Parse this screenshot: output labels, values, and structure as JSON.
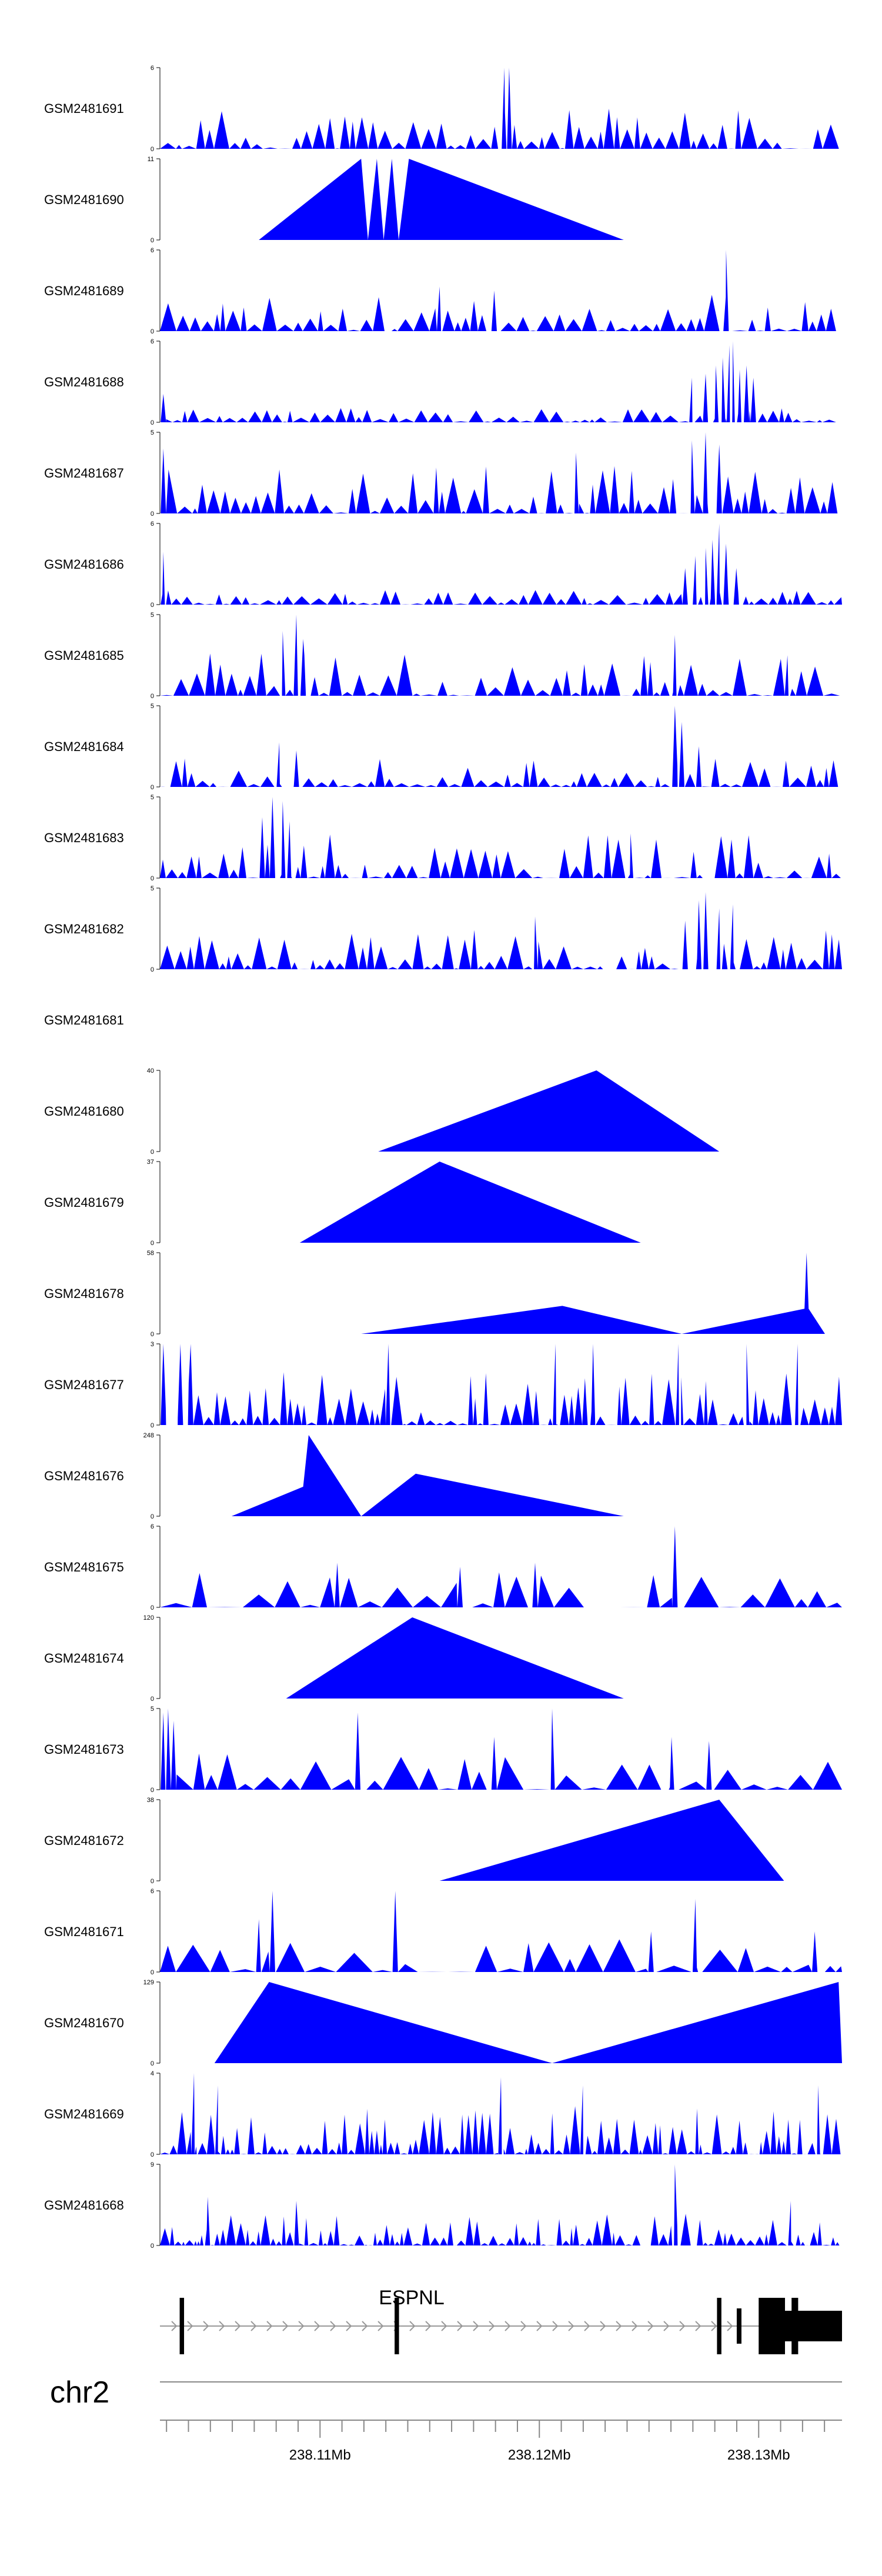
{
  "chart_data": {
    "type": "area",
    "chromosome": "chr2",
    "gene": "ESPNL",
    "x_range_mb": [
      238.1027,
      238.1338
    ],
    "fill_color": "#0000ff",
    "axis_ticks": [
      "238.11Mb",
      "238.12Mb",
      "238.13Mb"
    ],
    "axis_tick_values": [
      238.11,
      238.12,
      238.13
    ],
    "tracks": [
      {
        "name": "GSM2481691",
        "ymax": 6,
        "max_label": "6",
        "min_label": "0",
        "pattern": "noisy",
        "seed": 11,
        "peak": 0.5,
        "spikes": [
          [
            0.505,
            1.0
          ],
          [
            0.512,
            1.0
          ]
        ],
        "segs": null
      },
      {
        "name": "GSM2481690",
        "ymax": 11,
        "max_label": "11",
        "min_label": "0",
        "pattern": "tri",
        "seed": 0,
        "peak": 0,
        "spikes": [],
        "segs": [
          [
            0.145,
            0
          ],
          [
            0.295,
            11
          ],
          [
            0.305,
            0
          ],
          [
            0.318,
            11
          ],
          [
            0.328,
            0
          ],
          [
            0.34,
            11
          ],
          [
            0.35,
            0
          ],
          [
            0.365,
            11
          ],
          [
            0.68,
            0
          ]
        ]
      },
      {
        "name": "GSM2481689",
        "ymax": 6,
        "max_label": "6",
        "min_label": "0",
        "pattern": "noisy",
        "seed": 23,
        "peak": 0.45,
        "spikes": [
          [
            0.83,
            1.0
          ],
          [
            0.41,
            0.55
          ],
          [
            0.49,
            0.5
          ]
        ],
        "segs": null
      },
      {
        "name": "GSM2481688",
        "ymax": 6,
        "max_label": "6",
        "min_label": "0",
        "pattern": "cluster",
        "seed": 31,
        "peak": 0.22,
        "spikes": [
          [
            0.78,
            0.55
          ],
          [
            0.8,
            0.6
          ],
          [
            0.815,
            0.7
          ],
          [
            0.825,
            0.8
          ],
          [
            0.835,
            0.95
          ],
          [
            0.84,
            1.0
          ],
          [
            0.85,
            0.65
          ],
          [
            0.86,
            0.7
          ],
          [
            0.87,
            0.55
          ],
          [
            0.005,
            0.35
          ]
        ],
        "segs": null
      },
      {
        "name": "GSM2481687",
        "ymax": 5,
        "max_label": "5",
        "min_label": "0",
        "pattern": "noisy",
        "seed": 47,
        "peak": 0.6,
        "spikes": [
          [
            0.78,
            0.9
          ],
          [
            0.8,
            1.0
          ],
          [
            0.82,
            0.85
          ],
          [
            0.61,
            0.75
          ],
          [
            0.005,
            0.8
          ]
        ],
        "segs": null
      },
      {
        "name": "GSM2481686",
        "ymax": 6,
        "max_label": "6",
        "min_label": "0",
        "pattern": "cluster",
        "seed": 53,
        "peak": 0.25,
        "spikes": [
          [
            0.77,
            0.45
          ],
          [
            0.785,
            0.6
          ],
          [
            0.8,
            0.7
          ],
          [
            0.81,
            0.8
          ],
          [
            0.82,
            1.0
          ],
          [
            0.83,
            0.75
          ],
          [
            0.845,
            0.45
          ],
          [
            0.005,
            0.65
          ]
        ],
        "segs": null
      },
      {
        "name": "GSM2481685",
        "ymax": 5,
        "max_label": "5",
        "min_label": "0",
        "pattern": "noisy",
        "seed": 61,
        "peak": 0.55,
        "spikes": [
          [
            0.2,
            1.0
          ],
          [
            0.18,
            0.8
          ],
          [
            0.21,
            0.7
          ],
          [
            0.755,
            0.75
          ],
          [
            0.92,
            0.5
          ]
        ],
        "segs": null
      },
      {
        "name": "GSM2481684",
        "ymax": 5,
        "max_label": "5",
        "min_label": "0",
        "pattern": "noisy",
        "seed": 71,
        "peak": 0.35,
        "spikes": [
          [
            0.755,
            1.0
          ],
          [
            0.765,
            0.8
          ],
          [
            0.79,
            0.5
          ],
          [
            0.175,
            0.55
          ],
          [
            0.2,
            0.45
          ]
        ],
        "segs": null
      },
      {
        "name": "GSM2481683",
        "ymax": 5,
        "max_label": "5",
        "min_label": "0",
        "pattern": "noisy",
        "seed": 83,
        "peak": 0.55,
        "spikes": [
          [
            0.165,
            1.0
          ],
          [
            0.18,
            0.95
          ],
          [
            0.15,
            0.75
          ],
          [
            0.19,
            0.7
          ],
          [
            0.69,
            0.55
          ]
        ],
        "segs": null
      },
      {
        "name": "GSM2481682",
        "ymax": 5,
        "max_label": "5",
        "min_label": "0",
        "pattern": "noisy",
        "seed": 97,
        "peak": 0.5,
        "spikes": [
          [
            0.8,
            0.95
          ],
          [
            0.79,
            0.85
          ],
          [
            0.82,
            0.75
          ],
          [
            0.84,
            0.8
          ],
          [
            0.77,
            0.6
          ],
          [
            0.55,
            0.65
          ]
        ],
        "segs": null
      },
      {
        "name": "GSM2481681",
        "ymax": 0,
        "max_label": "",
        "min_label": "",
        "pattern": "empty",
        "seed": 0,
        "peak": 0,
        "spikes": [],
        "segs": null
      },
      {
        "name": "GSM2481680",
        "ymax": 40,
        "max_label": "40",
        "min_label": "0",
        "pattern": "tri",
        "seed": 0,
        "peak": 0,
        "spikes": [],
        "segs": [
          [
            0.32,
            0
          ],
          [
            0.64,
            40
          ],
          [
            0.82,
            0
          ]
        ]
      },
      {
        "name": "GSM2481679",
        "ymax": 37,
        "max_label": "37",
        "min_label": "0",
        "pattern": "tri",
        "seed": 0,
        "peak": 0,
        "spikes": [],
        "segs": [
          [
            0.205,
            0
          ],
          [
            0.41,
            37
          ],
          [
            0.705,
            0
          ]
        ]
      },
      {
        "name": "GSM2481678",
        "ymax": 58,
        "max_label": "58",
        "min_label": "0",
        "pattern": "tri",
        "seed": 0,
        "peak": 0,
        "spikes": [],
        "segs": [
          [
            0.295,
            0
          ],
          [
            0.59,
            20
          ],
          [
            0.765,
            0
          ],
          [
            0.945,
            18
          ],
          [
            0.948,
            58
          ],
          [
            0.951,
            18
          ],
          [
            0.975,
            0
          ]
        ]
      },
      {
        "name": "GSM2481677",
        "ymax": 3,
        "max_label": "3",
        "min_label": "0",
        "pattern": "spiky",
        "seed": 103,
        "peak": 0.65,
        "spikes": [
          [
            0.005,
            1.0
          ],
          [
            0.03,
            1.0
          ],
          [
            0.045,
            1.0
          ],
          [
            0.335,
            1.0
          ],
          [
            0.58,
            1.0
          ],
          [
            0.635,
            1.0
          ],
          [
            0.76,
            1.0
          ],
          [
            0.86,
            1.0
          ],
          [
            0.935,
            1.0
          ]
        ],
        "segs": null
      },
      {
        "name": "GSM2481676",
        "ymax": 248,
        "max_label": "248",
        "min_label": "0",
        "pattern": "tri",
        "seed": 0,
        "peak": 0,
        "spikes": [],
        "segs": [
          [
            0.105,
            0
          ],
          [
            0.21,
            90
          ],
          [
            0.218,
            248
          ],
          [
            0.295,
            0
          ],
          [
            0.375,
            130
          ],
          [
            0.68,
            0
          ]
        ]
      },
      {
        "name": "GSM2481675",
        "ymax": 6,
        "max_label": "6",
        "min_label": "0",
        "pattern": "sparse",
        "seed": 109,
        "peak": 0.45,
        "spikes": [
          [
            0.755,
            1.0
          ],
          [
            0.26,
            0.55
          ],
          [
            0.55,
            0.55
          ],
          [
            0.44,
            0.5
          ]
        ],
        "segs": null
      },
      {
        "name": "GSM2481674",
        "ymax": 120,
        "max_label": "120",
        "min_label": "0",
        "pattern": "tri",
        "seed": 0,
        "peak": 0,
        "spikes": [],
        "segs": [
          [
            0.185,
            0
          ],
          [
            0.37,
            120
          ],
          [
            0.68,
            0
          ]
        ]
      },
      {
        "name": "GSM2481673",
        "ymax": 5,
        "max_label": "5",
        "min_label": "0",
        "pattern": "sparse",
        "seed": 127,
        "peak": 0.45,
        "spikes": [
          [
            0.005,
            0.95
          ],
          [
            0.012,
            1.0
          ],
          [
            0.02,
            0.85
          ],
          [
            0.29,
            0.95
          ],
          [
            0.575,
            1.0
          ],
          [
            0.49,
            0.65
          ],
          [
            0.75,
            0.65
          ],
          [
            0.805,
            0.6
          ]
        ],
        "segs": null
      },
      {
        "name": "GSM2481672",
        "ymax": 38,
        "max_label": "38",
        "min_label": "0",
        "pattern": "tri",
        "seed": 0,
        "peak": 0,
        "spikes": [],
        "segs": [
          [
            0.41,
            0
          ],
          [
            0.82,
            38
          ],
          [
            0.915,
            0
          ]
        ]
      },
      {
        "name": "GSM2481671",
        "ymax": 6,
        "max_label": "6",
        "min_label": "0",
        "pattern": "sparse",
        "seed": 131,
        "peak": 0.5,
        "spikes": [
          [
            0.165,
            1.0
          ],
          [
            0.145,
            0.65
          ],
          [
            0.345,
            1.0
          ],
          [
            0.785,
            0.9
          ],
          [
            0.72,
            0.5
          ],
          [
            0.96,
            0.5
          ]
        ],
        "segs": null
      },
      {
        "name": "GSM2481670",
        "ymax": 129,
        "max_label": "129",
        "min_label": "0",
        "pattern": "tri",
        "seed": 0,
        "peak": 0,
        "spikes": [],
        "segs": [
          [
            0.08,
            0
          ],
          [
            0.16,
            129
          ],
          [
            0.575,
            0
          ],
          [
            0.995,
            129
          ],
          [
            1.0,
            0
          ]
        ]
      },
      {
        "name": "GSM2481669",
        "ymax": 4,
        "max_label": "4",
        "min_label": "0",
        "pattern": "dense",
        "seed": 139,
        "peak": 0.6,
        "spikes": [
          [
            0.05,
            1.0
          ],
          [
            0.085,
            0.85
          ],
          [
            0.5,
            0.95
          ],
          [
            0.62,
            0.85
          ],
          [
            0.965,
            0.85
          ]
        ],
        "segs": null
      },
      {
        "name": "GSM2481668",
        "ymax": 9,
        "max_label": "9",
        "min_label": "0",
        "pattern": "dense",
        "seed": 151,
        "peak": 0.4,
        "spikes": [
          [
            0.755,
            1.0
          ],
          [
            0.07,
            0.6
          ],
          [
            0.2,
            0.55
          ],
          [
            0.925,
            0.55
          ]
        ],
        "segs": null
      }
    ],
    "gene_model": {
      "label": "ESPNL",
      "start_mb": 238.1036,
      "end_mb": 238.1338,
      "exons_mb": [
        [
          238.1036,
          238.1038
        ],
        [
          238.1134,
          238.1136
        ],
        [
          238.1316,
          238.1318
        ],
        [
          238.1281,
          238.1283
        ]
      ],
      "thick_blocks_mb": [
        [
          238.129,
          238.1292,
          "s"
        ],
        [
          238.1303,
          238.1306,
          "m"
        ],
        [
          238.1315,
          238.1317,
          "m"
        ],
        [
          238.13,
          238.1312,
          "m"
        ]
      ],
      "utr_block_mb": [
        238.1303,
        238.1338
      ]
    }
  }
}
